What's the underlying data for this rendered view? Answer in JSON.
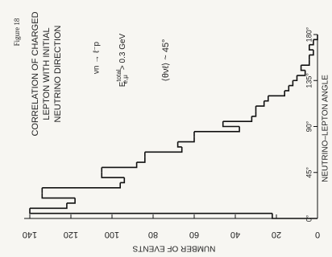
{
  "chart_data": {
    "type": "histogram",
    "figure_label": "Figure 18",
    "title": [
      "CORRELATION OF CHARGED",
      "LEPTON WITH INITIAL",
      "NEUTRINO DIRECTION"
    ],
    "annotations": {
      "reaction": "νn → ℓ⁻p",
      "energy": {
        "symbol": "E",
        "sup": "total",
        "sub": "e,μ",
        "text": "> 0.3 GeV"
      },
      "mean": "⟨θνℓ⟩  ~ 45°"
    },
    "x_label": "NEUTRINO–LEPTON ANGLE",
    "y_label": "NUMBER OF EVENTS",
    "bins": [
      0,
      5,
      10,
      15,
      20,
      25,
      30,
      35,
      40,
      45,
      50,
      55,
      60,
      65,
      70,
      75,
      80,
      85,
      90,
      95,
      100,
      105,
      110,
      115,
      120,
      125,
      130,
      135,
      140,
      145,
      150,
      155,
      160,
      165,
      170,
      175,
      180
    ],
    "values": [
      22,
      140,
      122,
      118,
      134,
      134,
      96,
      94,
      105,
      105,
      88,
      84,
      84,
      66,
      68,
      60,
      60,
      38,
      46,
      32,
      30,
      30,
      26,
      24,
      16,
      14,
      12,
      10,
      6,
      8,
      4,
      4,
      2,
      4,
      2,
      0
    ],
    "color": "#111111",
    "xlim": [
      0,
      180
    ],
    "xticks": [
      {
        "value": 0,
        "label": "0°"
      },
      {
        "value": 45,
        "label": "45°"
      },
      {
        "value": 90,
        "label": "90°"
      },
      {
        "value": 135,
        "label": "135°"
      },
      {
        "value": 180,
        "label": "180°"
      }
    ],
    "ylim": [
      0,
      140
    ],
    "yticks": [
      0,
      20,
      40,
      60,
      80,
      100,
      120,
      140
    ]
  }
}
